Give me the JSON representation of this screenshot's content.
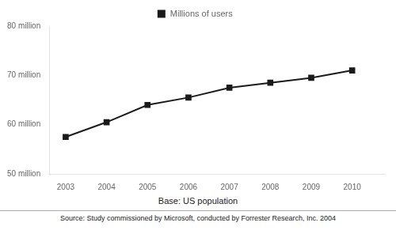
{
  "chart_data": {
    "type": "line",
    "x": [
      2003,
      2004,
      2005,
      2006,
      2007,
      2008,
      2009,
      2010
    ],
    "series": [
      {
        "name": "Millions of users",
        "color": "#1a1a1a",
        "marker": "square",
        "values": [
          57.5,
          60.5,
          64.0,
          65.5,
          67.5,
          68.5,
          69.5,
          71.0
        ]
      }
    ],
    "xlim": [
      2002.6,
      2010.8
    ],
    "xticks": [
      2003,
      2004,
      2005,
      2006,
      2007,
      2008,
      2009,
      2010
    ],
    "ylim": [
      50,
      80
    ],
    "yticks": [
      {
        "value": 50,
        "label": "50 million"
      },
      {
        "value": 60,
        "label": "60 million"
      },
      {
        "value": 70,
        "label": "70 million"
      },
      {
        "value": 80,
        "label": "80 million"
      }
    ],
    "grid": false,
    "legend": "top",
    "annotations": [
      "Base: US population",
      "Source: Study commissioned by Microsoft, conducted by Forrester Research, Inc. 2004"
    ]
  }
}
